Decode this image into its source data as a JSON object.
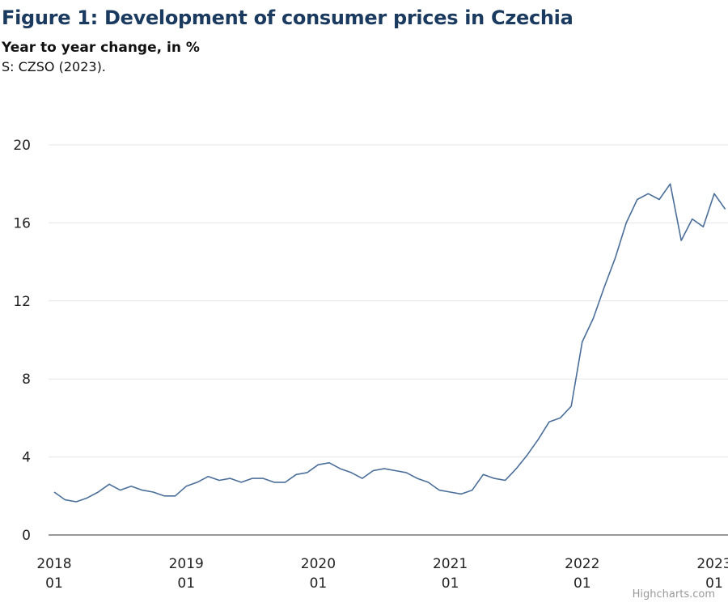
{
  "header": {
    "title": "Figure 1: Development of consumer prices in Czechia",
    "subtitle": "Year to year change, in %",
    "source": "S: CZSO (2023)."
  },
  "credits": "Highcharts.com",
  "colors": {
    "line": "#4a6e99",
    "grid": "#e6e6e6",
    "axis": "#333333"
  },
  "chart_data": {
    "type": "line",
    "title": "Figure 1: Development of consumer prices in Czechia",
    "subtitle": "Year to year change, in %",
    "ylim": [
      0,
      20
    ],
    "yticks": [
      0,
      4,
      8,
      12,
      16,
      20
    ],
    "xticks": [
      {
        "year": "2018",
        "month": "01",
        "index": 0
      },
      {
        "year": "2019",
        "month": "01",
        "index": 12
      },
      {
        "year": "2020",
        "month": "01",
        "index": 24
      },
      {
        "year": "2021",
        "month": "01",
        "index": 36
      },
      {
        "year": "2022",
        "month": "01",
        "index": 48
      },
      {
        "year": "2023",
        "month": "01",
        "index": 60
      }
    ],
    "x_start": "2018-01",
    "grid": true,
    "legend": "none",
    "series": [
      {
        "x": [
          "2018-01",
          "2018-02",
          "2018-03",
          "2018-04",
          "2018-05",
          "2018-06",
          "2018-07",
          "2018-08",
          "2018-09",
          "2018-10",
          "2018-11",
          "2018-12",
          "2019-01",
          "2019-02",
          "2019-03",
          "2019-04",
          "2019-05",
          "2019-06",
          "2019-07",
          "2019-08",
          "2019-09",
          "2019-10",
          "2019-11",
          "2019-12",
          "2020-01",
          "2020-02",
          "2020-03",
          "2020-04",
          "2020-05",
          "2020-06",
          "2020-07",
          "2020-08",
          "2020-09",
          "2020-10",
          "2020-11",
          "2020-12",
          "2021-01",
          "2021-02",
          "2021-03",
          "2021-04",
          "2021-05",
          "2021-06",
          "2021-07",
          "2021-08",
          "2021-09",
          "2021-10",
          "2021-11",
          "2021-12",
          "2022-01",
          "2022-02",
          "2022-03",
          "2022-04",
          "2022-05",
          "2022-06",
          "2022-07",
          "2022-08",
          "2022-09",
          "2022-10",
          "2022-11",
          "2022-12",
          "2023-01",
          "2023-02"
        ],
        "values": [
          2.2,
          1.8,
          1.7,
          1.9,
          2.2,
          2.6,
          2.3,
          2.5,
          2.3,
          2.2,
          2.0,
          2.0,
          2.5,
          2.7,
          3.0,
          2.8,
          2.9,
          2.7,
          2.9,
          2.9,
          2.7,
          2.7,
          3.1,
          3.2,
          3.6,
          3.7,
          3.4,
          3.2,
          2.9,
          3.3,
          3.4,
          3.3,
          3.2,
          2.9,
          2.7,
          2.3,
          2.2,
          2.1,
          2.3,
          3.1,
          2.9,
          2.8,
          3.4,
          4.1,
          4.9,
          5.8,
          6.0,
          6.6,
          9.9,
          11.1,
          12.7,
          14.2,
          16.0,
          17.2,
          17.5,
          17.2,
          18.0,
          15.1,
          16.2,
          15.8,
          17.5,
          16.7
        ]
      }
    ]
  }
}
